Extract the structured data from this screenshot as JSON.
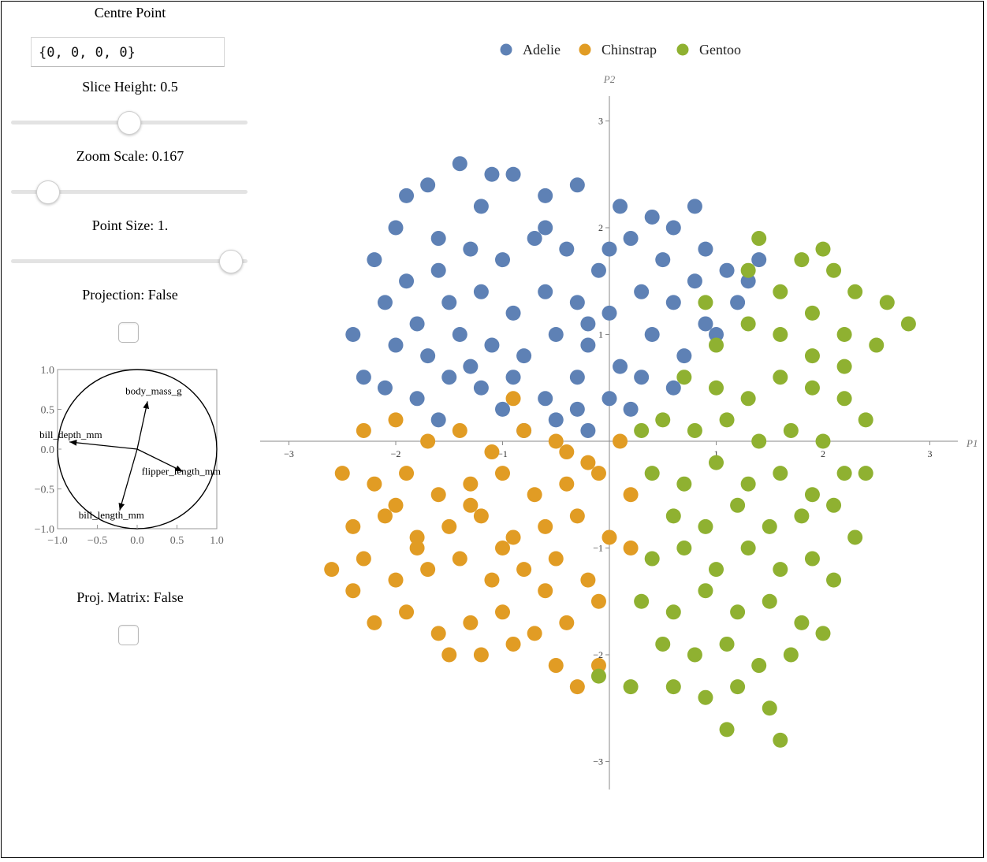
{
  "controls": {
    "centre_point_label": "Centre Point",
    "centre_point_value": "{0, 0, 0, 0}",
    "slice_height_label": "Slice Height: 0.5",
    "slice_height_value": 0.5,
    "zoom_scale_label": "Zoom Scale: 0.167",
    "zoom_scale_value": 0.167,
    "point_size_label": "Point Size: 1.",
    "point_size_value": 1.0,
    "projection_label": "Projection: False",
    "projection_checked": false,
    "proj_matrix_label": "Proj. Matrix: False",
    "proj_matrix_checked": false
  },
  "chart_data": [
    {
      "type": "scatter",
      "title": "",
      "xlabel": "P1",
      "ylabel": "P2",
      "xlim": [
        -3.3,
        3.3
      ],
      "ylim": [
        -3.3,
        3.3
      ],
      "xticks": [
        -3,
        -2,
        -1,
        1,
        2,
        3
      ],
      "yticks": [
        -3,
        -2,
        -1,
        1,
        2,
        3
      ],
      "xtick_labels": [
        "−3",
        "−2",
        "−1",
        "1",
        "2",
        "3"
      ],
      "ytick_labels": [
        "−3",
        "−2",
        "−1",
        "1",
        "2",
        "3"
      ],
      "grid": false,
      "legend": "top",
      "series": [
        {
          "name": "Adelie",
          "color": "#5e81b5",
          "points": [
            [
              -2.0,
              2.0
            ],
            [
              -1.7,
              2.4
            ],
            [
              -1.4,
              2.6
            ],
            [
              -1.2,
              2.2
            ],
            [
              -0.9,
              2.5
            ],
            [
              -0.6,
              2.3
            ],
            [
              -0.3,
              2.4
            ],
            [
              0.1,
              2.2
            ],
            [
              0.4,
              2.1
            ],
            [
              0.8,
              2.2
            ],
            [
              -2.2,
              1.7
            ],
            [
              -1.9,
              1.5
            ],
            [
              -1.6,
              1.9
            ],
            [
              -1.3,
              1.8
            ],
            [
              -1.0,
              1.7
            ],
            [
              -0.7,
              1.9
            ],
            [
              -0.4,
              1.8
            ],
            [
              -0.1,
              1.6
            ],
            [
              0.2,
              1.9
            ],
            [
              0.5,
              1.7
            ],
            [
              0.8,
              1.5
            ],
            [
              1.1,
              1.6
            ],
            [
              1.4,
              1.7
            ],
            [
              -2.1,
              1.3
            ],
            [
              -1.8,
              1.1
            ],
            [
              -1.5,
              1.3
            ],
            [
              -1.2,
              1.4
            ],
            [
              -0.9,
              1.2
            ],
            [
              -0.6,
              1.4
            ],
            [
              -0.3,
              1.3
            ],
            [
              0.0,
              1.2
            ],
            [
              0.3,
              1.4
            ],
            [
              0.6,
              1.3
            ],
            [
              0.9,
              1.1
            ],
            [
              1.2,
              1.3
            ],
            [
              -2.0,
              0.9
            ],
            [
              -1.7,
              0.8
            ],
            [
              -1.4,
              1.0
            ],
            [
              -1.1,
              0.9
            ],
            [
              -0.8,
              0.8
            ],
            [
              -0.5,
              1.0
            ],
            [
              -0.2,
              0.9
            ],
            [
              0.1,
              0.7
            ],
            [
              0.4,
              1.0
            ],
            [
              0.7,
              0.8
            ],
            [
              1.0,
              1.0
            ],
            [
              -2.1,
              0.5
            ],
            [
              -1.8,
              0.4
            ],
            [
              -1.5,
              0.6
            ],
            [
              -1.2,
              0.5
            ],
            [
              -0.9,
              0.6
            ],
            [
              -0.6,
              0.4
            ],
            [
              -0.3,
              0.6
            ],
            [
              0.0,
              0.4
            ],
            [
              0.3,
              0.6
            ],
            [
              0.6,
              0.5
            ],
            [
              -1.6,
              0.2
            ],
            [
              -1.0,
              0.3
            ],
            [
              -0.5,
              0.2
            ],
            [
              -0.2,
              0.1
            ],
            [
              0.2,
              0.3
            ],
            [
              -0.8,
              0.1
            ],
            [
              -0.3,
              0.3
            ],
            [
              -1.3,
              0.7
            ],
            [
              -0.6,
              2.0
            ],
            [
              0.0,
              1.8
            ],
            [
              -1.9,
              2.3
            ],
            [
              -1.1,
              2.5
            ],
            [
              0.6,
              2.0
            ],
            [
              0.9,
              1.8
            ],
            [
              -2.4,
              1.0
            ],
            [
              -2.3,
              0.6
            ],
            [
              -1.6,
              1.6
            ],
            [
              -0.2,
              1.1
            ],
            [
              1.3,
              1.5
            ]
          ]
        },
        {
          "name": "Chinstrap",
          "color": "#e19c24",
          "points": [
            [
              -2.3,
              0.1
            ],
            [
              -2.0,
              0.2
            ],
            [
              -1.7,
              0.0
            ],
            [
              -1.4,
              0.1
            ],
            [
              -1.1,
              -0.1
            ],
            [
              -0.8,
              0.1
            ],
            [
              -0.5,
              0.0
            ],
            [
              -0.2,
              -0.2
            ],
            [
              0.1,
              0.0
            ],
            [
              -2.5,
              -0.3
            ],
            [
              -2.2,
              -0.4
            ],
            [
              -1.9,
              -0.3
            ],
            [
              -1.6,
              -0.5
            ],
            [
              -1.3,
              -0.4
            ],
            [
              -1.0,
              -0.3
            ],
            [
              -0.7,
              -0.5
            ],
            [
              -0.4,
              -0.4
            ],
            [
              -0.1,
              -0.3
            ],
            [
              0.2,
              -0.5
            ],
            [
              -2.4,
              -0.8
            ],
            [
              -2.1,
              -0.7
            ],
            [
              -1.8,
              -0.9
            ],
            [
              -1.5,
              -0.8
            ],
            [
              -1.2,
              -0.7
            ],
            [
              -0.9,
              -0.9
            ],
            [
              -0.6,
              -0.8
            ],
            [
              -0.3,
              -0.7
            ],
            [
              0.0,
              -0.9
            ],
            [
              0.2,
              -1.0
            ],
            [
              -2.6,
              -1.2
            ],
            [
              -2.3,
              -1.1
            ],
            [
              -2.0,
              -1.3
            ],
            [
              -1.7,
              -1.2
            ],
            [
              -1.4,
              -1.1
            ],
            [
              -1.1,
              -1.3
            ],
            [
              -0.8,
              -1.2
            ],
            [
              -0.5,
              -1.1
            ],
            [
              -0.2,
              -1.3
            ],
            [
              -2.2,
              -1.7
            ],
            [
              -1.9,
              -1.6
            ],
            [
              -1.6,
              -1.8
            ],
            [
              -1.3,
              -1.7
            ],
            [
              -1.0,
              -1.6
            ],
            [
              -0.7,
              -1.8
            ],
            [
              -0.4,
              -1.7
            ],
            [
              -0.1,
              -1.5
            ],
            [
              -1.5,
              -2.0
            ],
            [
              -1.2,
              -2.0
            ],
            [
              -0.9,
              -1.9
            ],
            [
              -0.5,
              -2.1
            ],
            [
              -0.3,
              -2.3
            ],
            [
              -0.1,
              -2.1
            ],
            [
              -2.4,
              -1.4
            ],
            [
              -1.8,
              -1.0
            ],
            [
              -0.9,
              0.4
            ],
            [
              -1.3,
              -0.6
            ],
            [
              -0.6,
              -1.4
            ],
            [
              -2.0,
              -0.6
            ],
            [
              -1.0,
              -1.0
            ],
            [
              -0.4,
              -0.1
            ]
          ]
        },
        {
          "name": "Gentoo",
          "color": "#8fb131",
          "points": [
            [
              1.4,
              1.9
            ],
            [
              1.8,
              1.7
            ],
            [
              2.1,
              1.6
            ],
            [
              2.3,
              1.4
            ],
            [
              2.6,
              1.3
            ],
            [
              1.6,
              1.4
            ],
            [
              1.9,
              1.2
            ],
            [
              2.2,
              1.0
            ],
            [
              2.5,
              0.9
            ],
            [
              2.8,
              1.1
            ],
            [
              1.0,
              0.9
            ],
            [
              1.3,
              1.1
            ],
            [
              1.6,
              1.0
            ],
            [
              1.9,
              0.8
            ],
            [
              2.2,
              0.7
            ],
            [
              0.7,
              0.6
            ],
            [
              1.0,
              0.5
            ],
            [
              1.3,
              0.4
            ],
            [
              1.6,
              0.6
            ],
            [
              1.9,
              0.5
            ],
            [
              2.2,
              0.4
            ],
            [
              2.4,
              0.2
            ],
            [
              0.5,
              0.2
            ],
            [
              0.8,
              0.1
            ],
            [
              1.1,
              0.2
            ],
            [
              1.4,
              0.0
            ],
            [
              1.7,
              0.1
            ],
            [
              2.0,
              0.0
            ],
            [
              0.4,
              -0.3
            ],
            [
              0.7,
              -0.4
            ],
            [
              1.0,
              -0.2
            ],
            [
              1.3,
              -0.4
            ],
            [
              1.6,
              -0.3
            ],
            [
              1.9,
              -0.5
            ],
            [
              2.2,
              -0.3
            ],
            [
              2.4,
              -0.3
            ],
            [
              0.6,
              -0.7
            ],
            [
              0.9,
              -0.8
            ],
            [
              1.2,
              -0.6
            ],
            [
              1.5,
              -0.8
            ],
            [
              1.8,
              -0.7
            ],
            [
              2.1,
              -0.6
            ],
            [
              2.3,
              -0.9
            ],
            [
              0.4,
              -1.1
            ],
            [
              0.7,
              -1.0
            ],
            [
              1.0,
              -1.2
            ],
            [
              1.3,
              -1.0
            ],
            [
              1.6,
              -1.2
            ],
            [
              1.9,
              -1.1
            ],
            [
              2.1,
              -1.3
            ],
            [
              0.3,
              -1.5
            ],
            [
              0.6,
              -1.6
            ],
            [
              0.9,
              -1.4
            ],
            [
              1.2,
              -1.6
            ],
            [
              1.5,
              -1.5
            ],
            [
              1.8,
              -1.7
            ],
            [
              2.0,
              -1.8
            ],
            [
              0.5,
              -1.9
            ],
            [
              0.8,
              -2.0
            ],
            [
              1.1,
              -1.9
            ],
            [
              1.4,
              -2.1
            ],
            [
              1.7,
              -2.0
            ],
            [
              0.6,
              -2.3
            ],
            [
              0.9,
              -2.4
            ],
            [
              1.2,
              -2.3
            ],
            [
              1.5,
              -2.5
            ],
            [
              1.1,
              -2.7
            ],
            [
              1.6,
              -2.8
            ],
            [
              0.2,
              -2.3
            ],
            [
              -0.1,
              -2.2
            ],
            [
              0.9,
              1.3
            ],
            [
              1.3,
              1.6
            ],
            [
              2.0,
              1.8
            ],
            [
              0.3,
              0.1
            ]
          ]
        }
      ]
    },
    {
      "type": "diagram",
      "title": "",
      "xlim": [
        -1.0,
        1.0
      ],
      "ylim": [
        -1.0,
        1.0
      ],
      "xticks": [
        -1.0,
        -0.5,
        0.0,
        0.5,
        1.0
      ],
      "yticks": [
        -1.0,
        -0.5,
        0.0,
        0.5,
        1.0
      ],
      "xtick_labels": [
        "−1.0",
        "−0.5",
        "0.0",
        "0.5",
        "1.0"
      ],
      "ytick_labels": [
        "−1.0",
        "−0.5",
        "0.0",
        "0.5",
        "1.0"
      ],
      "vectors": [
        {
          "name": "body_mass_g",
          "x": 0.13,
          "y": 0.6
        },
        {
          "name": "bill_depth_mm",
          "x": -0.85,
          "y": 0.09
        },
        {
          "name": "flipper_length_mm",
          "x": 0.57,
          "y": -0.28
        },
        {
          "name": "bill_length_mm",
          "x": -0.22,
          "y": -0.77
        }
      ]
    }
  ]
}
